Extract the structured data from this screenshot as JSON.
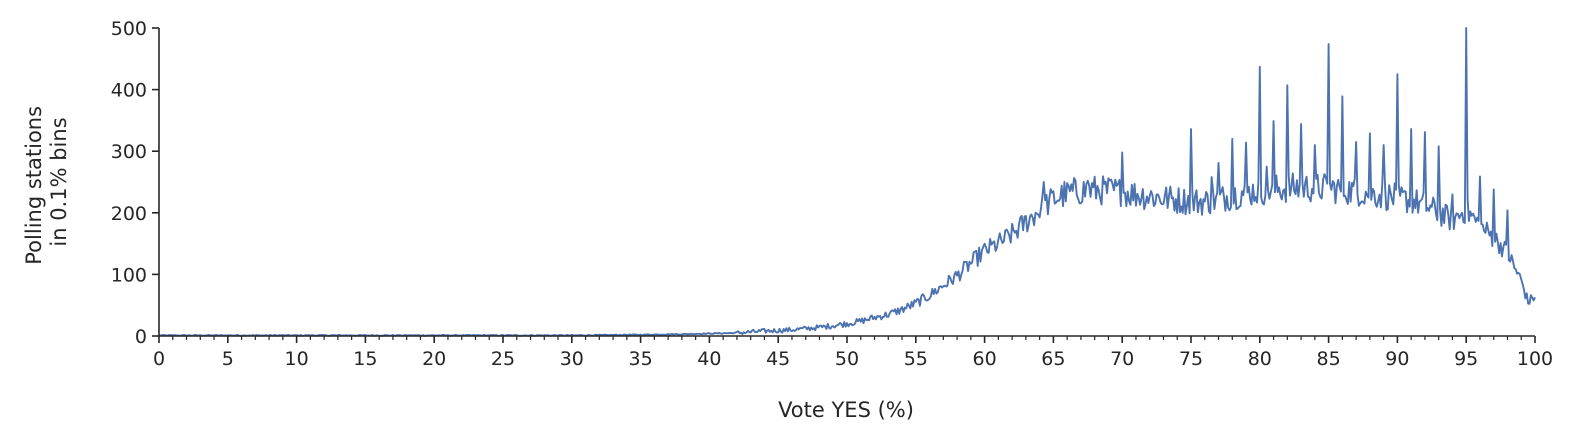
{
  "chart_data": {
    "type": "line",
    "title": "",
    "xlabel": "Vote YES (%)",
    "ylabel": [
      "Polling stations",
      "in 0.1% bins"
    ],
    "xlim": [
      0,
      100
    ],
    "ylim": [
      0,
      500
    ],
    "xticks": [
      0,
      5,
      10,
      15,
      20,
      25,
      30,
      35,
      40,
      45,
      50,
      55,
      60,
      65,
      70,
      75,
      80,
      85,
      90,
      95,
      100
    ],
    "yticks": [
      0,
      100,
      200,
      300,
      400,
      500
    ],
    "grid": false,
    "line_color": "#4c72b0",
    "bin_width": 0.1,
    "series": [
      {
        "values": [
          [
            0,
            1
          ],
          [
            5,
            1
          ],
          [
            10,
            1
          ],
          [
            15,
            1
          ],
          [
            20,
            1
          ],
          [
            25,
            1
          ],
          [
            30,
            1
          ],
          [
            35,
            2
          ],
          [
            38,
            3
          ],
          [
            40,
            4
          ],
          [
            42,
            5
          ],
          [
            44,
            8
          ],
          [
            46,
            10
          ],
          [
            48,
            14
          ],
          [
            50,
            20
          ],
          [
            51,
            24
          ],
          [
            52,
            30
          ],
          [
            53,
            35
          ],
          [
            54,
            43
          ],
          [
            55,
            53
          ],
          [
            56,
            66
          ],
          [
            57,
            82
          ],
          [
            58,
            98
          ],
          [
            59,
            118
          ],
          [
            60,
            138
          ],
          [
            61,
            150
          ],
          [
            62,
            165
          ],
          [
            63,
            185
          ],
          [
            64,
            205
          ],
          [
            65,
            222
          ],
          [
            66,
            232
          ],
          [
            67,
            236
          ],
          [
            68,
            237
          ],
          [
            69,
            236
          ],
          [
            70,
            234
          ],
          [
            71,
            230
          ],
          [
            72,
            227
          ],
          [
            73,
            224
          ],
          [
            74,
            221
          ],
          [
            75,
            219
          ],
          [
            76,
            218
          ],
          [
            77,
            222
          ],
          [
            78,
            228
          ],
          [
            79,
            233
          ],
          [
            80,
            236
          ],
          [
            81,
            238
          ],
          [
            82,
            240
          ],
          [
            83,
            241
          ],
          [
            84,
            241
          ],
          [
            85,
            240
          ],
          [
            86,
            238
          ],
          [
            87,
            235
          ],
          [
            88,
            232
          ],
          [
            89,
            228
          ],
          [
            90,
            224
          ],
          [
            91,
            220
          ],
          [
            92,
            212
          ],
          [
            93,
            200
          ],
          [
            94,
            188
          ],
          [
            95,
            205
          ],
          [
            96,
            178
          ],
          [
            97,
            160
          ],
          [
            98,
            135
          ],
          [
            99,
            90
          ],
          [
            99.5,
            55
          ],
          [
            100,
            65
          ]
        ],
        "spikes": [
          [
            64.3,
            250
          ],
          [
            66,
            248
          ],
          [
            67.5,
            252
          ],
          [
            70,
            298
          ],
          [
            75,
            336
          ],
          [
            76.5,
            258
          ],
          [
            77,
            281
          ],
          [
            78,
            320
          ],
          [
            79,
            314
          ],
          [
            80,
            437
          ],
          [
            80.5,
            275
          ],
          [
            81,
            349
          ],
          [
            82,
            407
          ],
          [
            83,
            344
          ],
          [
            84,
            310
          ],
          [
            85,
            474
          ],
          [
            86,
            389
          ],
          [
            87,
            315
          ],
          [
            88,
            329
          ],
          [
            89,
            310
          ],
          [
            90,
            425
          ],
          [
            91,
            336
          ],
          [
            92,
            331
          ],
          [
            93,
            308
          ],
          [
            94,
            230
          ],
          [
            95,
            500
          ],
          [
            96,
            259
          ],
          [
            97,
            238
          ],
          [
            98,
            204
          ],
          [
            98.5,
            110
          ]
        ]
      }
    ]
  }
}
